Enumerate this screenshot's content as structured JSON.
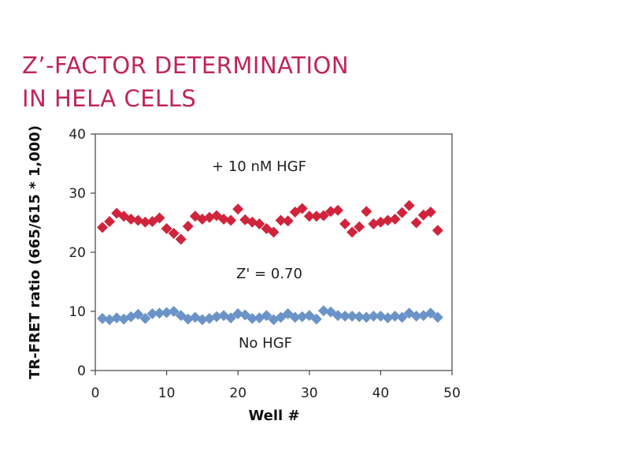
{
  "header": {
    "title_line1": "Z’-FACTOR DETERMINATION",
    "title_line2": "IN HELA CELLS"
  },
  "colors": {
    "title": "#c0245a",
    "hgf": "#d0243c",
    "no_hgf": "#6b93c8",
    "axis": "#444444"
  },
  "chart_data": {
    "type": "scatter",
    "title": "Z’-FACTOR DETERMINATION IN HELA CELLS",
    "xlabel": "Well #",
    "ylabel": "TR-FRET ratio (665/615 * 1,000)",
    "xlim": [
      0,
      50
    ],
    "ylim": [
      0,
      40
    ],
    "xticks": [
      0,
      10,
      20,
      30,
      40,
      50
    ],
    "yticks": [
      0,
      10,
      20,
      30,
      40
    ],
    "marker": "diamond",
    "annotations": {
      "hgf": "+ 10 nM HGF",
      "zprime": "Z' = 0.70",
      "no_hgf": "No HGF"
    },
    "series": [
      {
        "name": "+ 10 nM HGF",
        "color": "#d0243c",
        "x": [
          1,
          2,
          3,
          4,
          5,
          6,
          7,
          8,
          9,
          10,
          11,
          12,
          13,
          14,
          15,
          16,
          17,
          18,
          19,
          20,
          21,
          22,
          23,
          24,
          25,
          26,
          27,
          28,
          29,
          30,
          31,
          32,
          33,
          34,
          35,
          36,
          37,
          38,
          39,
          40,
          41,
          42,
          43,
          44,
          45,
          46,
          47,
          48
        ],
        "y": [
          24.2,
          25.2,
          26.6,
          26.1,
          25.6,
          25.4,
          25.1,
          25.2,
          25.8,
          24.0,
          23.2,
          22.2,
          24.4,
          26.1,
          25.6,
          25.9,
          26.2,
          25.6,
          25.4,
          27.3,
          25.5,
          25.1,
          24.8,
          24.0,
          23.4,
          25.4,
          25.3,
          26.8,
          27.4,
          26.1,
          26.1,
          26.2,
          26.9,
          27.1,
          24.8,
          23.4,
          24.3,
          26.9,
          24.8,
          25.1,
          25.4,
          25.6,
          26.7,
          27.9,
          25.0,
          26.3,
          26.8,
          23.7
        ]
      },
      {
        "name": "No HGF",
        "color": "#6b93c8",
        "x": [
          1,
          2,
          3,
          4,
          5,
          6,
          7,
          8,
          9,
          10,
          11,
          12,
          13,
          14,
          15,
          16,
          17,
          18,
          19,
          20,
          21,
          22,
          23,
          24,
          25,
          26,
          27,
          28,
          29,
          30,
          31,
          32,
          33,
          34,
          35,
          36,
          37,
          38,
          39,
          40,
          41,
          42,
          43,
          44,
          45,
          46,
          47,
          48
        ],
        "y": [
          8.8,
          8.6,
          8.9,
          8.7,
          9.1,
          9.5,
          8.8,
          9.6,
          9.7,
          9.8,
          10.0,
          9.3,
          8.7,
          9.0,
          8.6,
          8.8,
          9.1,
          9.3,
          8.9,
          9.6,
          9.4,
          8.8,
          8.9,
          9.3,
          8.6,
          9.0,
          9.6,
          9.0,
          9.1,
          9.3,
          8.7,
          10.1,
          9.9,
          9.3,
          9.2,
          9.2,
          9.1,
          9.0,
          9.2,
          9.2,
          8.9,
          9.2,
          9.0,
          9.7,
          9.2,
          9.3,
          9.7,
          9.0
        ]
      }
    ]
  }
}
